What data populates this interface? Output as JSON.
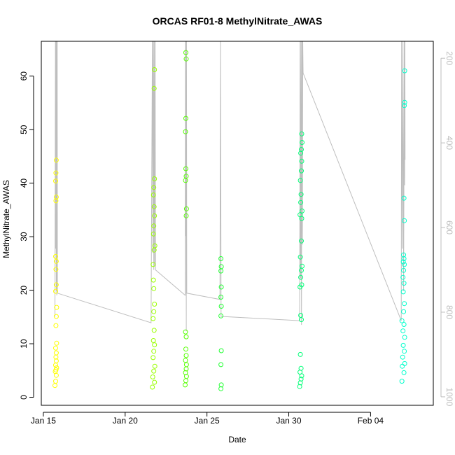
{
  "chart_data": {
    "type": "scatter",
    "title": "ORCAS RF01-8 MethylNitrate_AWAS",
    "xlabel": "Date",
    "ylabel": "MethylNitrate_AWAS",
    "xlim": [
      "2016-01-14T21:00",
      "2016-02-07T20:00"
    ],
    "ylim": [
      -1.5,
      66.5
    ],
    "y2lim": [
      1020,
      160
    ],
    "y2_reversed": true,
    "x_ticks": [
      {
        "date": "2016-01-15",
        "label": "Jan 15"
      },
      {
        "date": "2016-01-20",
        "label": "Jan 20"
      },
      {
        "date": "2016-01-25",
        "label": "Jan 25"
      },
      {
        "date": "2016-01-30",
        "label": "Jan 30"
      },
      {
        "date": "2016-02-04",
        "label": "Feb 04"
      }
    ],
    "y_ticks": [
      0,
      10,
      20,
      30,
      40,
      50,
      60
    ],
    "y2_ticks": [
      200,
      400,
      600,
      800,
      1000
    ],
    "grid": false,
    "secondary_line_color": "#bebebe",
    "series": [
      {
        "color": "#ffff00",
        "points": [
          {
            "x": "2016-01-15T17:00",
            "y": 2.2
          },
          {
            "x": "2016-01-15T18:00",
            "y": 3.0
          },
          {
            "x": "2016-01-15T19:00",
            "y": 4.1
          },
          {
            "x": "2016-01-15T17:30",
            "y": 4.8
          },
          {
            "x": "2016-01-15T18:30",
            "y": 5.1
          },
          {
            "x": "2016-01-15T19:30",
            "y": 5.5
          },
          {
            "x": "2016-01-15T18:00",
            "y": 6.0
          },
          {
            "x": "2016-01-15T19:00",
            "y": 6.8
          },
          {
            "x": "2016-01-15T18:30",
            "y": 7.5
          },
          {
            "x": "2016-01-15T19:00",
            "y": 8.3
          },
          {
            "x": "2016-01-15T18:00",
            "y": 9.2
          },
          {
            "x": "2016-01-15T19:30",
            "y": 10.1
          },
          {
            "x": "2016-01-15T18:30",
            "y": 13.4
          },
          {
            "x": "2016-01-15T19:00",
            "y": 15.1
          },
          {
            "x": "2016-01-15T19:30",
            "y": 16.8
          },
          {
            "x": "2016-01-15T18:00",
            "y": 19.8
          },
          {
            "x": "2016-01-15T19:00",
            "y": 21.0
          },
          {
            "x": "2016-01-15T18:30",
            "y": 23.9
          },
          {
            "x": "2016-01-15T19:00",
            "y": 25.4
          },
          {
            "x": "2016-01-15T18:00",
            "y": 26.3
          },
          {
            "x": "2016-01-15T18:30",
            "y": 36.7
          },
          {
            "x": "2016-01-15T19:00",
            "y": 37.4
          },
          {
            "x": "2016-01-15T18:00",
            "y": 40.4
          },
          {
            "x": "2016-01-15T18:30",
            "y": 41.9
          },
          {
            "x": "2016-01-15T19:00",
            "y": 44.3
          }
        ]
      },
      {
        "color": "#99ff00",
        "points": [
          {
            "x": "2016-01-21T16:00",
            "y": 1.9
          },
          {
            "x": "2016-01-21T19:00",
            "y": 2.8
          },
          {
            "x": "2016-01-21T16:30",
            "y": 3.8
          },
          {
            "x": "2016-01-21T18:00",
            "y": 4.9
          },
          {
            "x": "2016-01-21T19:30",
            "y": 5.8
          },
          {
            "x": "2016-01-21T17:00",
            "y": 7.4
          },
          {
            "x": "2016-01-21T18:00",
            "y": 8.6
          },
          {
            "x": "2016-01-21T19:00",
            "y": 9.8
          },
          {
            "x": "2016-01-21T17:30",
            "y": 10.6
          },
          {
            "x": "2016-01-21T18:30",
            "y": 12.5
          },
          {
            "x": "2016-01-21T17:00",
            "y": 14.7
          },
          {
            "x": "2016-01-21T18:00",
            "y": 16.0
          },
          {
            "x": "2016-01-21T19:00",
            "y": 17.4
          },
          {
            "x": "2016-01-21T18:00",
            "y": 20.3
          },
          {
            "x": "2016-01-21T17:30",
            "y": 21.9
          },
          {
            "x": "2016-01-21T17:00",
            "y": 24.8
          },
          {
            "x": "2016-01-21T18:30",
            "y": 27.5
          },
          {
            "x": "2016-01-21T19:30",
            "y": 28.3
          },
          {
            "x": "2016-01-21T17:30",
            "y": 30.5
          },
          {
            "x": "2016-01-21T18:00",
            "y": 32.0
          },
          {
            "x": "2016-01-21T19:00",
            "y": 33.9
          },
          {
            "x": "2016-01-21T18:30",
            "y": 35.6
          },
          {
            "x": "2016-01-21T17:30",
            "y": 37.8
          },
          {
            "x": "2016-01-21T18:00",
            "y": 39.2
          },
          {
            "x": "2016-01-21T19:00",
            "y": 40.8
          },
          {
            "x": "2016-01-21T18:30",
            "y": 57.7
          },
          {
            "x": "2016-01-21T19:00",
            "y": 61.2
          }
        ]
      },
      {
        "color": "#55ff00",
        "points": [
          {
            "x": "2016-01-23T16:00",
            "y": 2.3
          },
          {
            "x": "2016-01-23T17:00",
            "y": 3.1
          },
          {
            "x": "2016-01-23T18:00",
            "y": 3.9
          },
          {
            "x": "2016-01-23T16:30",
            "y": 4.6
          },
          {
            "x": "2016-01-23T17:30",
            "y": 5.3
          },
          {
            "x": "2016-01-23T18:00",
            "y": 6.1
          },
          {
            "x": "2016-01-23T16:30",
            "y": 6.9
          },
          {
            "x": "2016-01-23T17:30",
            "y": 7.8
          },
          {
            "x": "2016-01-23T17:00",
            "y": 9.0
          },
          {
            "x": "2016-01-23T17:30",
            "y": 11.3
          },
          {
            "x": "2016-01-23T16:30",
            "y": 12.2
          },
          {
            "x": "2016-01-23T17:30",
            "y": 33.9
          },
          {
            "x": "2016-01-23T18:00",
            "y": 35.2
          },
          {
            "x": "2016-01-23T16:30",
            "y": 40.5
          },
          {
            "x": "2016-01-23T17:30",
            "y": 41.3
          },
          {
            "x": "2016-01-23T17:00",
            "y": 42.7
          },
          {
            "x": "2016-01-23T16:30",
            "y": 49.6
          },
          {
            "x": "2016-01-23T17:00",
            "y": 52.1
          },
          {
            "x": "2016-01-23T17:30",
            "y": 63.2
          },
          {
            "x": "2016-01-23T17:00",
            "y": 64.4
          }
        ]
      },
      {
        "color": "#22ff33",
        "points": [
          {
            "x": "2016-01-25T20:30",
            "y": 1.6
          },
          {
            "x": "2016-01-25T21:00",
            "y": 2.3
          },
          {
            "x": "2016-01-25T20:30",
            "y": 6.1
          },
          {
            "x": "2016-01-25T21:00",
            "y": 8.7
          },
          {
            "x": "2016-01-25T20:30",
            "y": 15.2
          },
          {
            "x": "2016-01-25T21:00",
            "y": 17.0
          },
          {
            "x": "2016-01-25T20:30",
            "y": 18.7
          },
          {
            "x": "2016-01-25T21:00",
            "y": 20.6
          },
          {
            "x": "2016-01-25T20:30",
            "y": 23.6
          },
          {
            "x": "2016-01-25T21:00",
            "y": 24.4
          },
          {
            "x": "2016-01-25T20:30",
            "y": 25.9
          }
        ]
      },
      {
        "color": "#00ff77",
        "points": [
          {
            "x": "2016-01-30T16:00",
            "y": 2.0
          },
          {
            "x": "2016-01-30T17:00",
            "y": 2.7
          },
          {
            "x": "2016-01-30T18:00",
            "y": 3.4
          },
          {
            "x": "2016-01-30T19:00",
            "y": 4.0
          },
          {
            "x": "2016-01-30T16:30",
            "y": 4.7
          },
          {
            "x": "2016-01-30T18:00",
            "y": 5.4
          },
          {
            "x": "2016-01-30T17:00",
            "y": 8.0
          },
          {
            "x": "2016-01-30T18:30",
            "y": 14.5
          },
          {
            "x": "2016-01-30T17:30",
            "y": 15.3
          },
          {
            "x": "2016-01-30T16:30",
            "y": 20.6
          },
          {
            "x": "2016-01-30T19:00",
            "y": 21.0
          },
          {
            "x": "2016-01-30T17:30",
            "y": 22.4
          },
          {
            "x": "2016-01-30T18:30",
            "y": 23.7
          },
          {
            "x": "2016-01-30T19:30",
            "y": 24.5
          },
          {
            "x": "2016-01-30T17:00",
            "y": 26.2
          },
          {
            "x": "2016-01-30T18:30",
            "y": 29.2
          },
          {
            "x": "2016-01-30T19:00",
            "y": 33.4
          },
          {
            "x": "2016-01-30T16:30",
            "y": 34.1
          },
          {
            "x": "2016-01-30T19:30",
            "y": 34.8
          },
          {
            "x": "2016-01-30T17:30",
            "y": 36.4
          },
          {
            "x": "2016-01-30T18:00",
            "y": 37.9
          },
          {
            "x": "2016-01-30T17:00",
            "y": 40.5
          },
          {
            "x": "2016-01-30T18:30",
            "y": 42.3
          },
          {
            "x": "2016-01-30T19:00",
            "y": 44.1
          },
          {
            "x": "2016-01-30T17:30",
            "y": 45.6
          },
          {
            "x": "2016-01-30T18:30",
            "y": 46.3
          },
          {
            "x": "2016-01-30T19:30",
            "y": 47.6
          },
          {
            "x": "2016-01-30T19:00",
            "y": 49.2
          }
        ]
      },
      {
        "color": "#00ffcc",
        "points": [
          {
            "x": "2016-02-05T22:00",
            "y": 3.0
          },
          {
            "x": "2016-02-06T01:00",
            "y": 4.6
          },
          {
            "x": "2016-02-05T22:30",
            "y": 5.8
          },
          {
            "x": "2016-02-06T02:00",
            "y": 6.3
          },
          {
            "x": "2016-02-05T23:00",
            "y": 7.5
          },
          {
            "x": "2016-02-06T01:30",
            "y": 8.6
          },
          {
            "x": "2016-02-06T00:00",
            "y": 9.7
          },
          {
            "x": "2016-02-06T02:00",
            "y": 11.2
          },
          {
            "x": "2016-02-05T23:30",
            "y": 12.4
          },
          {
            "x": "2016-02-06T01:00",
            "y": 13.6
          },
          {
            "x": "2016-02-05T22:00",
            "y": 14.3
          },
          {
            "x": "2016-02-06T00:30",
            "y": 16.0
          },
          {
            "x": "2016-02-06T01:30",
            "y": 17.5
          },
          {
            "x": "2016-02-06T00:00",
            "y": 19.7
          },
          {
            "x": "2016-02-06T01:00",
            "y": 21.3
          },
          {
            "x": "2016-02-05T23:30",
            "y": 22.4
          },
          {
            "x": "2016-02-06T00:30",
            "y": 23.7
          },
          {
            "x": "2016-02-06T01:30",
            "y": 24.8
          },
          {
            "x": "2016-02-06T00:00",
            "y": 25.3
          },
          {
            "x": "2016-02-06T01:00",
            "y": 25.9
          },
          {
            "x": "2016-02-06T00:30",
            "y": 26.6
          },
          {
            "x": "2016-02-06T01:30",
            "y": 33.0
          },
          {
            "x": "2016-02-06T01:00",
            "y": 37.2
          },
          {
            "x": "2016-02-06T01:30",
            "y": 54.5
          },
          {
            "x": "2016-02-06T02:00",
            "y": 55.1
          },
          {
            "x": "2016-02-06T02:00",
            "y": 61.0
          }
        ]
      }
    ],
    "secondary_line": {
      "description_values": "pressure (right axis, hPa)",
      "points": [
        {
          "x": "2016-01-15T17:00",
          "p": 810
        },
        {
          "x": "2016-01-15T17:45",
          "p": 160
        },
        {
          "x": "2016-01-15T18:10",
          "p": 650
        },
        {
          "x": "2016-01-15T18:30",
          "p": 160
        },
        {
          "x": "2016-01-15T19:00",
          "p": 750
        },
        {
          "x": "2016-01-15T19:20",
          "p": 160
        },
        {
          "x": "2016-01-15T19:40",
          "p": 760
        },
        {
          "x": "2016-01-15T20:00",
          "p": 600
        },
        {
          "x": "2016-01-15T20:20",
          "p": 160
        },
        {
          "x": "2016-01-15T20:40",
          "p": 755
        },
        {
          "x": "2016-01-21T14:00",
          "p": 825
        },
        {
          "x": "2016-01-21T16:00",
          "p": 160
        },
        {
          "x": "2016-01-21T16:40",
          "p": 660
        },
        {
          "x": "2016-01-21T17:20",
          "p": 160
        },
        {
          "x": "2016-01-21T18:00",
          "p": 700
        },
        {
          "x": "2016-01-21T18:40",
          "p": 160
        },
        {
          "x": "2016-01-21T19:20",
          "p": 690
        },
        {
          "x": "2016-01-21T20:00",
          "p": 160
        },
        {
          "x": "2016-01-21T20:30",
          "p": 700
        },
        {
          "x": "2016-01-23T16:00",
          "p": 760
        },
        {
          "x": "2016-01-23T16:30",
          "p": 160
        },
        {
          "x": "2016-01-23T17:00",
          "p": 620
        },
        {
          "x": "2016-01-23T17:20",
          "p": 160
        },
        {
          "x": "2016-01-23T17:40",
          "p": 845
        },
        {
          "x": "2016-01-23T18:00",
          "p": 160
        },
        {
          "x": "2016-01-23T18:20",
          "p": 755
        },
        {
          "x": "2016-01-25T19:00",
          "p": 770
        },
        {
          "x": "2016-01-25T20:00",
          "p": 160
        },
        {
          "x": "2016-01-25T20:40",
          "p": 810
        },
        {
          "x": "2016-01-30T16:00",
          "p": 820
        },
        {
          "x": "2016-01-30T16:40",
          "p": 160
        },
        {
          "x": "2016-01-30T17:20",
          "p": 720
        },
        {
          "x": "2016-01-30T18:00",
          "p": 160
        },
        {
          "x": "2016-01-30T18:40",
          "p": 830
        },
        {
          "x": "2016-01-30T19:20",
          "p": 160
        },
        {
          "x": "2016-01-30T20:00",
          "p": 640
        },
        {
          "x": "2016-01-30T20:30",
          "p": 160
        },
        {
          "x": "2016-01-30T21:00",
          "p": 235
        },
        {
          "x": "2016-02-05T21:00",
          "p": 820
        },
        {
          "x": "2016-02-05T21:30",
          "p": 160
        },
        {
          "x": "2016-02-05T22:30",
          "p": 650
        },
        {
          "x": "2016-02-05T23:30",
          "p": 160
        },
        {
          "x": "2016-02-06T00:30",
          "p": 750
        },
        {
          "x": "2016-02-06T01:30",
          "p": 160
        },
        {
          "x": "2016-02-06T02:00",
          "p": 500
        },
        {
          "x": "2016-02-06T02:20",
          "p": 160
        },
        {
          "x": "2016-02-06T02:40",
          "p": 440
        }
      ]
    }
  }
}
